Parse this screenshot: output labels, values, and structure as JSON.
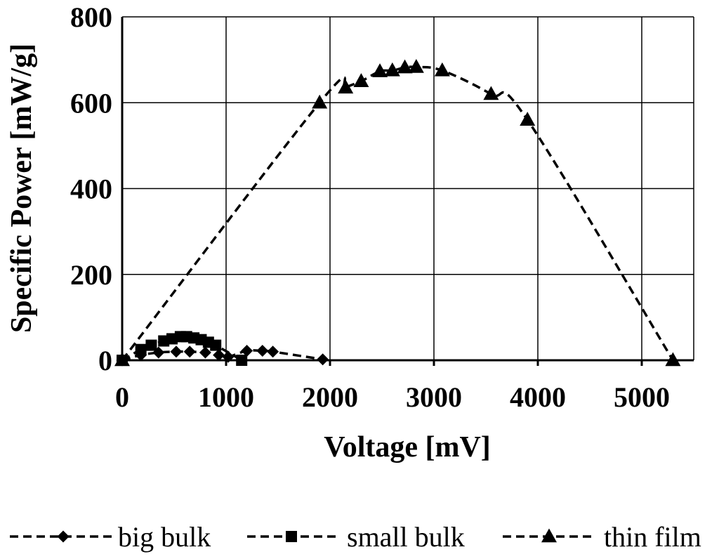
{
  "chart_data": {
    "type": "scatter",
    "xlabel": "Voltage [mV]",
    "ylabel": "Specific Power [mW/g]",
    "xlim": [
      0,
      5500
    ],
    "ylim": [
      0,
      800
    ],
    "xticks": [
      0,
      1000,
      2000,
      3000,
      4000,
      5000
    ],
    "yticks": [
      0,
      200,
      400,
      600,
      800
    ],
    "xtick_labels": [
      "0",
      "1000",
      "2000",
      "3000",
      "4000",
      "5000"
    ],
    "ytick_labels": [
      "0",
      "200",
      "400",
      "600",
      "800"
    ],
    "grid": true,
    "legend_position": "bottom",
    "line_style": "dashed",
    "series": [
      {
        "name": "big bulk",
        "marker": "diamond",
        "x": [
          0,
          180,
          350,
          520,
          650,
          800,
          930,
          1020,
          1200,
          1350,
          1450,
          1930
        ],
        "y": [
          0,
          12,
          18,
          20,
          20,
          18,
          12,
          8,
          22,
          22,
          20,
          2
        ]
      },
      {
        "name": "small bulk",
        "marker": "square",
        "x": [
          0,
          180,
          280,
          400,
          480,
          560,
          620,
          690,
          760,
          830,
          900,
          1150
        ],
        "y": [
          0,
          25,
          35,
          45,
          50,
          55,
          55,
          52,
          48,
          42,
          35,
          0
        ]
      },
      {
        "name": "thin film",
        "marker": "triangle",
        "x": [
          0,
          1900,
          2150,
          2300,
          2480,
          2600,
          2720,
          2830,
          3080,
          3550,
          3900,
          5300
        ],
        "y": [
          0,
          600,
          635,
          650,
          673,
          675,
          682,
          683,
          675,
          620,
          560,
          0
        ]
      }
    ]
  }
}
